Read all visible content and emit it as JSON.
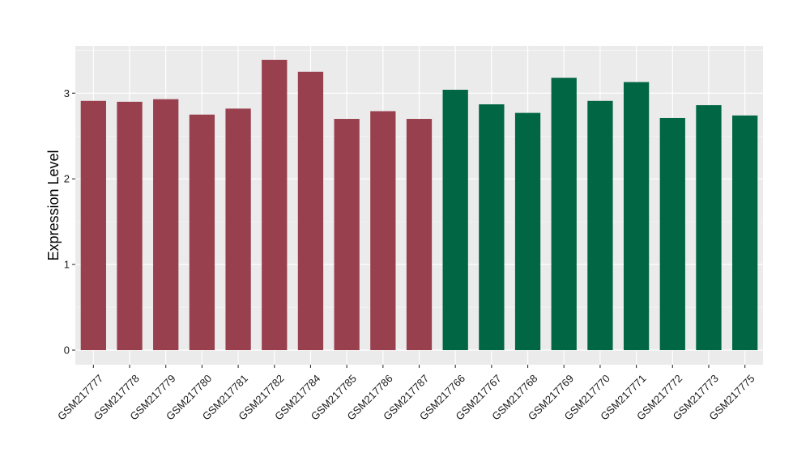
{
  "chart_data": {
    "type": "bar",
    "ylabel": "Expression Level",
    "xlabel": "",
    "ylim": [
      -0.17,
      3.55
    ],
    "y_ticks": [
      0,
      1,
      2,
      3
    ],
    "y_tick_labels": [
      "0",
      "1",
      "2",
      "3"
    ],
    "grid": true,
    "legend": "none",
    "categories": [
      "GSM217777",
      "GSM217778",
      "GSM217779",
      "GSM217780",
      "GSM217781",
      "GSM217782",
      "GSM217784",
      "GSM217785",
      "GSM217786",
      "GSM217787",
      "GSM217766",
      "GSM217767",
      "GSM217768",
      "GSM217769",
      "GSM217770",
      "GSM217771",
      "GSM217772",
      "GSM217773",
      "GSM217775"
    ],
    "values": [
      2.91,
      2.9,
      2.93,
      2.75,
      2.82,
      3.39,
      3.25,
      2.7,
      2.79,
      2.7,
      3.04,
      2.87,
      2.77,
      3.18,
      2.91,
      3.13,
      2.71,
      2.86,
      2.74
    ],
    "bar_colors": [
      "#99404f",
      "#99404f",
      "#99404f",
      "#99404f",
      "#99404f",
      "#99404f",
      "#99404f",
      "#99404f",
      "#99404f",
      "#99404f",
      "#006644",
      "#006644",
      "#006644",
      "#006644",
      "#006644",
      "#006644",
      "#006644",
      "#006644",
      "#006644"
    ]
  },
  "colors": {
    "panel_background": "#ebebeb",
    "grid_major": "#ffffff",
    "group_1": "#99404f",
    "group_2": "#006644"
  }
}
